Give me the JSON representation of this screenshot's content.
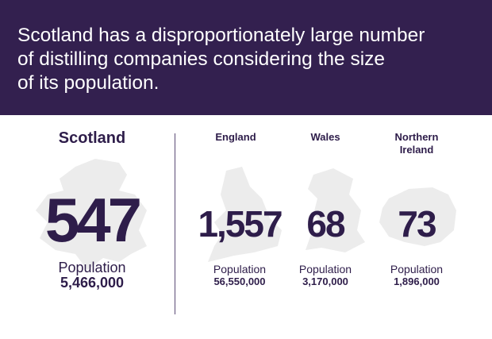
{
  "header": {
    "title_lines": [
      "Scotland has a disproportionately large number",
      "of distilling companies considering the size",
      "of its population."
    ]
  },
  "regions": [
    {
      "name": "Scotland",
      "count": "547",
      "population_label": "Population",
      "population": "5,466,000"
    },
    {
      "name": "England",
      "count": "1,557",
      "population_label": "Population",
      "population": "56,550,000"
    },
    {
      "name": "Wales",
      "count": "68",
      "population_label": "Population",
      "population": "3,170,000"
    },
    {
      "name": "Northern Ireland",
      "count": "73",
      "population_label": "Population",
      "population": "1,896,000"
    }
  ]
}
